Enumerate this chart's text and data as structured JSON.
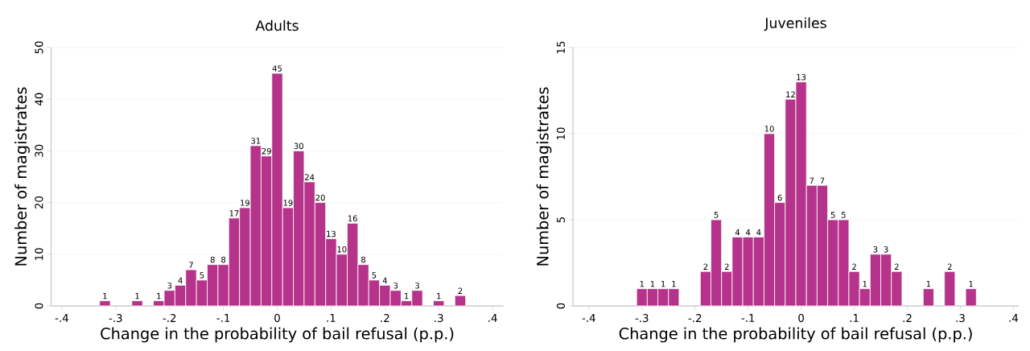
{
  "chart_data": [
    {
      "type": "histogram",
      "title": "Adults",
      "xlabel": "Change in the probability of bail refusal (p.p.)",
      "ylabel": "Number of magistrates",
      "color": "#b5338a",
      "grid": "y",
      "bins": [
        -0.33,
        -0.31,
        -0.29,
        -0.27,
        -0.25,
        -0.23,
        -0.21,
        -0.19,
        -0.17,
        -0.15,
        -0.13,
        -0.11,
        -0.09,
        -0.07,
        -0.05,
        -0.03,
        -0.01,
        0.01,
        0.03,
        0.05,
        0.07,
        0.09,
        0.11,
        0.13,
        0.15,
        0.17,
        0.19,
        0.21,
        0.23,
        0.25,
        0.27,
        0.29,
        0.31,
        0.33,
        0.35
      ],
      "values": [
        1,
        0,
        0,
        1,
        0,
        1,
        3,
        4,
        7,
        5,
        8,
        8,
        17,
        19,
        31,
        29,
        45,
        19,
        30,
        24,
        20,
        13,
        10,
        16,
        8,
        5,
        4,
        3,
        1,
        3,
        0,
        1,
        0,
        2
      ],
      "value_labels": [
        "1",
        null,
        null,
        "1",
        null,
        "1",
        "3",
        "4",
        "7",
        "5",
        "8",
        "8",
        "17",
        "19",
        "31",
        "29",
        "45",
        "19",
        "30",
        "24",
        "20",
        "13",
        "10",
        "16",
        "8",
        "5",
        "4",
        "3",
        "1",
        "3",
        null,
        "1",
        null,
        "2"
      ],
      "xlim": [
        -0.42,
        0.42
      ],
      "ylim": [
        0,
        50
      ],
      "xticks": [
        {
          "value": -0.4,
          "label": "-.4"
        },
        {
          "value": -0.3,
          "label": "-.3"
        },
        {
          "value": -0.2,
          "label": "-.2"
        },
        {
          "value": -0.1,
          "label": "-.1"
        },
        {
          "value": 0,
          "label": "0"
        },
        {
          "value": 0.1,
          "label": ".1"
        },
        {
          "value": 0.2,
          "label": ".2"
        },
        {
          "value": 0.3,
          "label": ".3"
        },
        {
          "value": 0.4,
          "label": ".4"
        }
      ],
      "yticks": [
        0,
        10,
        20,
        30,
        40,
        50
      ]
    },
    {
      "type": "histogram",
      "title": "Juveniles",
      "xlabel": "Change in the probability of bail refusal (p.p.)",
      "ylabel": "Number of magistrates",
      "color": "#b5338a",
      "grid": "y",
      "bins": [
        -0.31,
        -0.29,
        -0.27,
        -0.25,
        -0.23,
        -0.21,
        -0.19,
        -0.17,
        -0.15,
        -0.13,
        -0.11,
        -0.09,
        -0.07,
        -0.05,
        -0.03,
        -0.01,
        0.01,
        0.03,
        0.05,
        0.07,
        0.09,
        0.11,
        0.13,
        0.15,
        0.17,
        0.19,
        0.21,
        0.23,
        0.25,
        0.27,
        0.29,
        0.31,
        0.33
      ],
      "values": [
        1,
        1,
        1,
        1,
        0,
        0,
        2,
        5,
        2,
        4,
        4,
        4,
        10,
        6,
        12,
        13,
        7,
        7,
        5,
        5,
        2,
        1,
        3,
        3,
        2,
        0,
        0,
        1,
        0,
        2,
        0,
        1
      ],
      "value_labels": [
        "1",
        "1",
        "1",
        "1",
        null,
        null,
        "2",
        "5",
        "2",
        "4",
        "4",
        "4",
        "10",
        "6",
        "12",
        "13",
        "7",
        "7",
        "5",
        "5",
        "2",
        "1",
        "3",
        "3",
        "2",
        null,
        null,
        "1",
        null,
        "2",
        null,
        "1"
      ],
      "xlim": [
        -0.43,
        0.41
      ],
      "ylim": [
        0,
        15
      ],
      "xticks": [
        {
          "value": -0.4,
          "label": "-.4"
        },
        {
          "value": -0.3,
          "label": "-.3"
        },
        {
          "value": -0.2,
          "label": "-.2"
        },
        {
          "value": -0.1,
          "label": "-.1"
        },
        {
          "value": 0,
          "label": "0"
        },
        {
          "value": 0.1,
          "label": ".1"
        },
        {
          "value": 0.2,
          "label": ".2"
        },
        {
          "value": 0.3,
          "label": ".3"
        },
        {
          "value": 0.4,
          "label": ".4"
        }
      ],
      "yticks": [
        0,
        5,
        10,
        15
      ]
    }
  ]
}
